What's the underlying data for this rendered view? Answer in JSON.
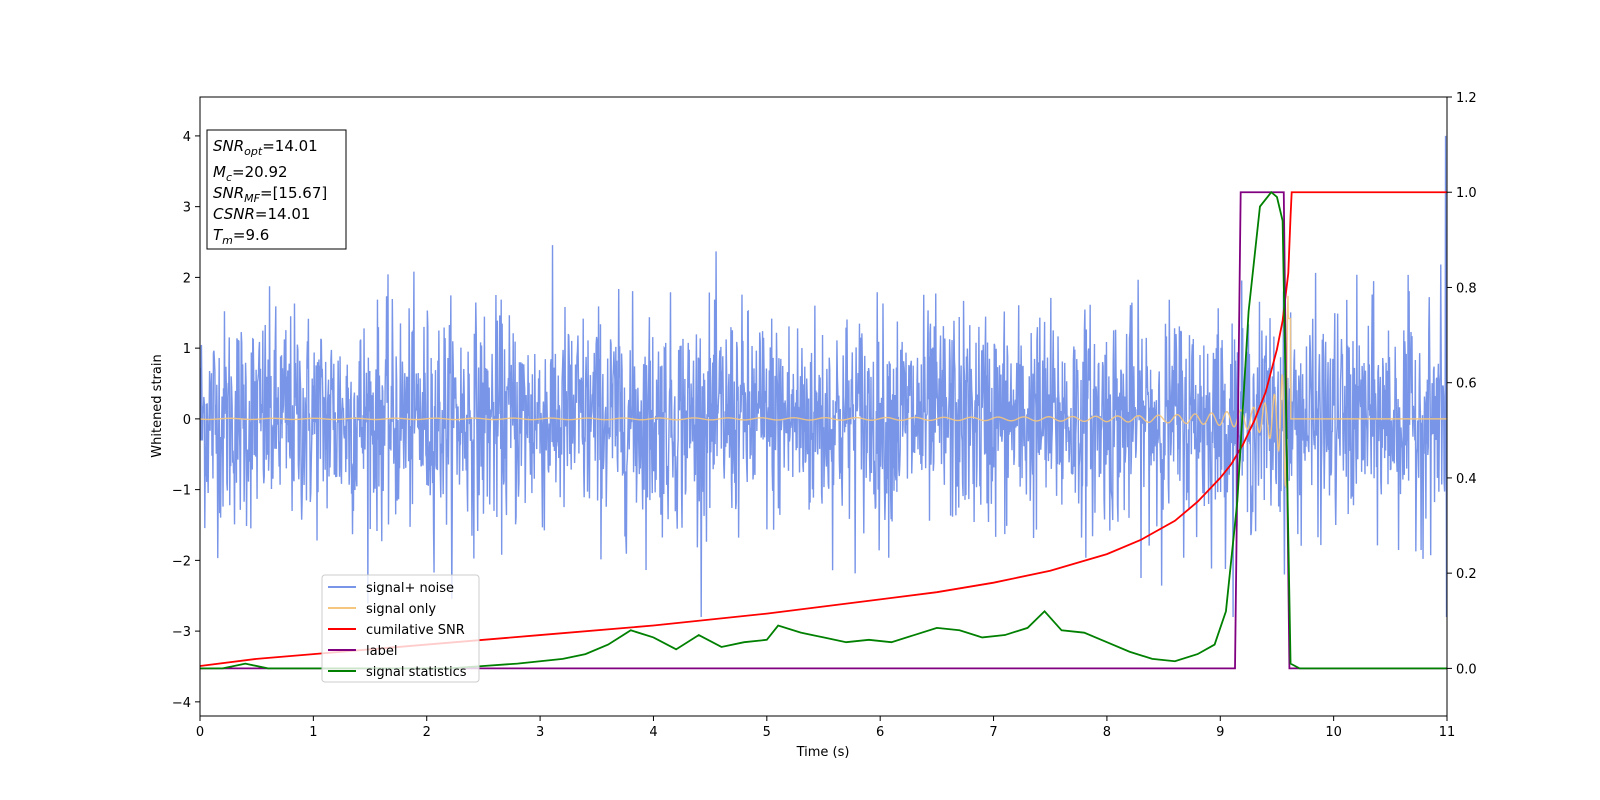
{
  "chart_data": {
    "type": "line",
    "xlabel": "Time (s)",
    "ylabel": "Whitened strain",
    "xlim": [
      0,
      11
    ],
    "ylim_left": [
      -4.2,
      4.55
    ],
    "ylim_right": [
      -0.1,
      1.2
    ],
    "x_ticks": [
      0,
      1,
      2,
      3,
      4,
      5,
      6,
      7,
      8,
      9,
      10,
      11
    ],
    "y_ticks_left": [
      -4,
      -3,
      -2,
      -1,
      0,
      1,
      2,
      3,
      4
    ],
    "y_ticks_right": [
      0.0,
      0.2,
      0.4,
      0.6,
      0.8,
      1.0,
      1.2
    ],
    "grid": false,
    "legend_position": "lower-left",
    "annotations": [
      {
        "sym": "SNR",
        "sub": "opt",
        "rest": "=14.01"
      },
      {
        "sym": "M",
        "sub": "c",
        "rest": "=20.92"
      },
      {
        "sym": "SNR",
        "sub": "MF",
        "rest": "=[15.67]"
      },
      {
        "sym": "CSNR",
        "sub": "",
        "rest": "=14.01"
      },
      {
        "sym": "T",
        "sub": "m",
        "rest": "=9.6"
      }
    ],
    "series": [
      {
        "name": "signal+ noise",
        "axis": "left",
        "color": "#7895e8",
        "description_stats": {
          "std": 0.75,
          "min": -2.8,
          "max": 4.0
        }
      },
      {
        "name": "signal only",
        "axis": "left",
        "color": "#f5c77e",
        "chirp": {
          "start_amplitude": 0.01,
          "peak_amplitude": 1.9,
          "merger_time": 9.6,
          "end_time": 9.62
        }
      },
      {
        "name": "cumilative SNR",
        "axis": "right",
        "color": "#ff0000",
        "x": [
          0,
          0.5,
          1,
          2,
          3,
          4,
          5,
          6,
          6.5,
          7,
          7.5,
          8,
          8.3,
          8.6,
          8.8,
          9.0,
          9.1,
          9.2,
          9.3,
          9.4,
          9.5,
          9.55,
          9.6,
          9.62,
          9.63,
          11
        ],
        "y": [
          0.005,
          0.02,
          0.03,
          0.05,
          0.07,
          0.09,
          0.115,
          0.145,
          0.16,
          0.18,
          0.205,
          0.24,
          0.27,
          0.31,
          0.35,
          0.4,
          0.43,
          0.47,
          0.52,
          0.58,
          0.67,
          0.73,
          0.83,
          0.95,
          1.0,
          1.0
        ]
      },
      {
        "name": "label",
        "axis": "right",
        "color": "#800080",
        "x": [
          0,
          9.13,
          9.18,
          9.56,
          9.61,
          11
        ],
        "y": [
          0,
          0,
          1.0,
          1.0,
          0,
          0
        ]
      },
      {
        "name": "signal statistics",
        "axis": "right",
        "color": "#008000",
        "x": [
          0,
          0.2,
          0.4,
          0.6,
          0.8,
          1.0,
          1.4,
          1.8,
          2.2,
          2.5,
          2.8,
          3.0,
          3.2,
          3.4,
          3.6,
          3.8,
          4.0,
          4.2,
          4.4,
          4.6,
          4.8,
          5.0,
          5.1,
          5.3,
          5.5,
          5.7,
          5.9,
          6.1,
          6.3,
          6.5,
          6.7,
          6.9,
          7.1,
          7.3,
          7.45,
          7.6,
          7.8,
          8.0,
          8.2,
          8.4,
          8.6,
          8.8,
          8.95,
          9.05,
          9.15,
          9.25,
          9.35,
          9.45,
          9.5,
          9.55,
          9.62,
          9.7,
          11
        ],
        "y": [
          0,
          0,
          0.01,
          0,
          0,
          0,
          0,
          0,
          0,
          0.005,
          0.01,
          0.015,
          0.02,
          0.03,
          0.05,
          0.08,
          0.065,
          0.04,
          0.07,
          0.045,
          0.055,
          0.06,
          0.09,
          0.075,
          0.065,
          0.055,
          0.06,
          0.055,
          0.07,
          0.085,
          0.08,
          0.065,
          0.07,
          0.085,
          0.12,
          0.08,
          0.075,
          0.055,
          0.035,
          0.02,
          0.015,
          0.03,
          0.05,
          0.12,
          0.35,
          0.75,
          0.97,
          1.0,
          0.99,
          0.94,
          0.01,
          0,
          0
        ]
      }
    ]
  }
}
